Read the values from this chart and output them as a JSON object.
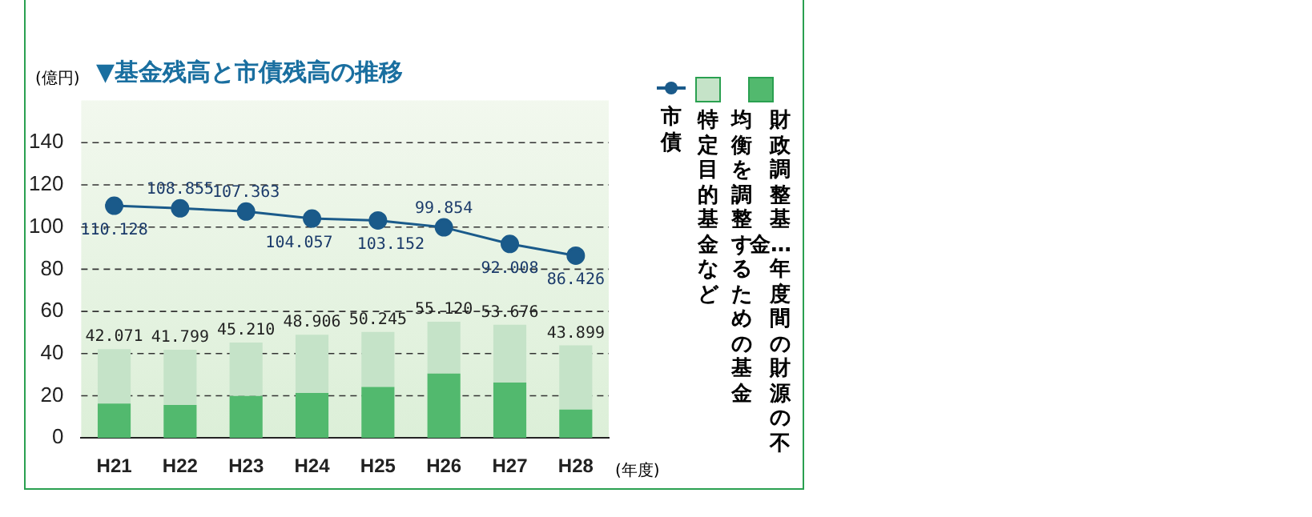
{
  "chart_data": {
    "type": "bar",
    "title": "▼基金残高と市債残高の推移",
    "ylabel": "(億円)",
    "xlabel": "(年度)",
    "categories": [
      "H21",
      "H22",
      "H23",
      "H24",
      "H25",
      "H26",
      "H27",
      "H28"
    ],
    "stacked": true,
    "series": [
      {
        "name": "財政調整基金…年度間の財源の不均衡を調整するための基金",
        "color": "#52b96e",
        "values": [
          16.3,
          15.6,
          19.9,
          21.3,
          24.2,
          30.5,
          26.3,
          13.5
        ]
      },
      {
        "name": "特定目的基金など",
        "color": "#c5e3c8",
        "values": [
          25.771,
          26.199,
          25.31,
          27.606,
          26.045,
          24.62,
          27.376,
          30.399
        ]
      },
      {
        "name": "市債",
        "type": "line",
        "color": "#1a5a8a",
        "marker": "circle",
        "values": [
          110.128,
          108.855,
          107.363,
          104.057,
          103.152,
          99.854,
          92.008,
          86.426
        ],
        "value_labels": [
          "110.128",
          "108.855",
          "107.363",
          "104.057",
          "103.152",
          "99.854",
          "92.008",
          "86.426"
        ]
      }
    ],
    "totals": [
      "42.071",
      "41.799",
      "45.210",
      "48.906",
      "50.245",
      "55.120",
      "53.676",
      "43.899"
    ],
    "ylim": [
      0,
      160
    ],
    "yticks": [
      0,
      20,
      40,
      60,
      80,
      100,
      120,
      140
    ],
    "grid": "y",
    "legend": "right"
  }
}
